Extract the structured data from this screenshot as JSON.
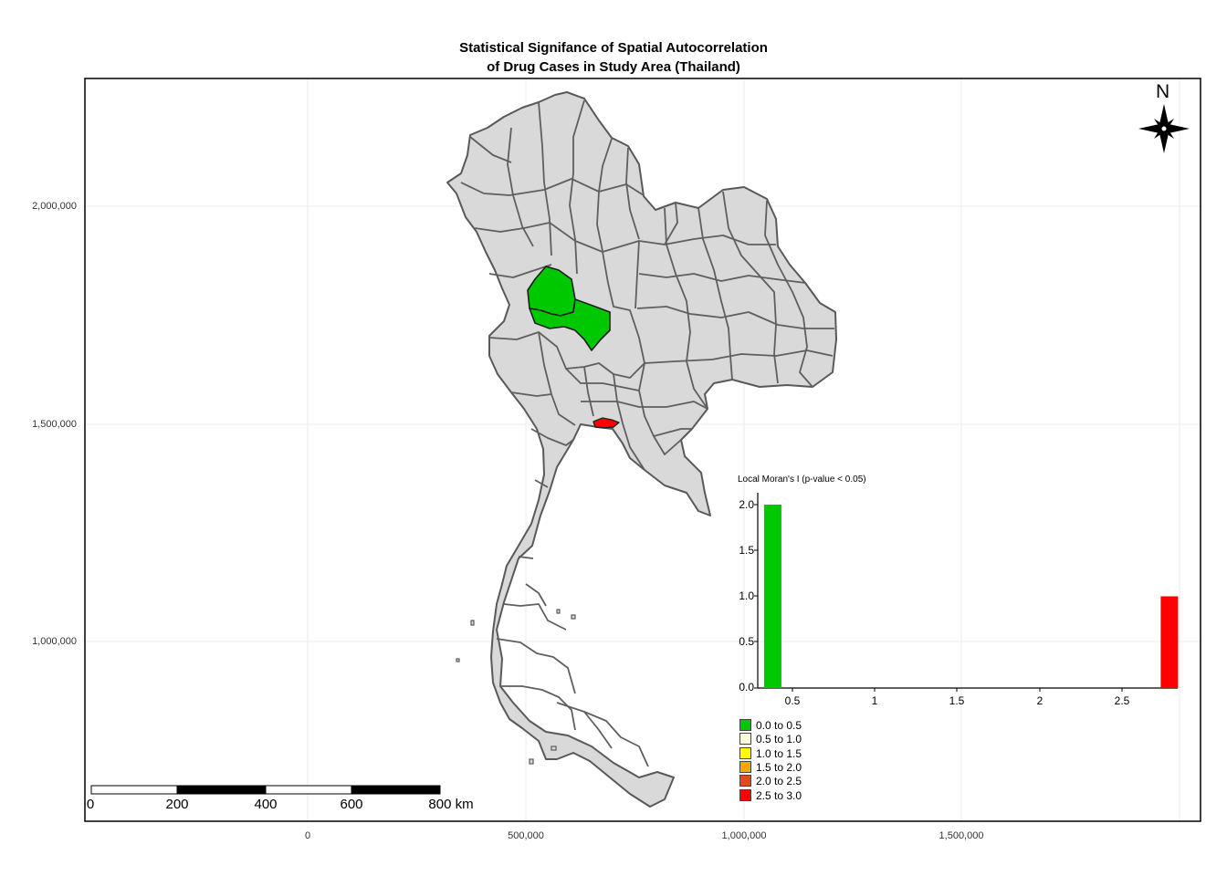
{
  "title": {
    "line1": "Statistical Signifance of Spatial Autocorrelation",
    "line2": "of Drug Cases in Study Area (Thailand)"
  },
  "axes": {
    "y_ticks": [
      "2,000,000",
      "1,500,000",
      "1,000,000"
    ],
    "x_ticks": [
      "0",
      "500,000",
      "1,000,000",
      "1,500,000"
    ]
  },
  "north_arrow": {
    "label": "N"
  },
  "scale_bar": {
    "labels": [
      "0",
      "200",
      "400",
      "600",
      "800 km"
    ]
  },
  "histogram": {
    "title": "Local Moran's I (p-value < 0.05)",
    "y_ticks": [
      "2.0",
      "1.5",
      "1.0",
      "0.5",
      "0.0"
    ],
    "x_ticks": [
      "0.5",
      "1",
      "1.5",
      "2",
      "2.5"
    ]
  },
  "legend": {
    "items": [
      {
        "label": "0.0 to 0.5",
        "color": "#00c800"
      },
      {
        "label": "0.5 to 1.0",
        "color": "#ffffe0"
      },
      {
        "label": "1.0 to 1.5",
        "color": "#ffff00"
      },
      {
        "label": "1.5 to 2.0",
        "color": "#ffa500"
      },
      {
        "label": "2.0 to 2.5",
        "color": "#e24a1e"
      },
      {
        "label": "2.5 to 3.0",
        "color": "#ff0000"
      }
    ]
  },
  "chart_data": {
    "type": "bar",
    "title": "Local Moran's I (p-value < 0.05)",
    "x": [
      0.37,
      2.75
    ],
    "values": [
      2,
      1
    ],
    "colors": [
      "#00c800",
      "#ff0000"
    ],
    "xlim": [
      0.28,
      2.8
    ],
    "ylim": [
      0,
      2.0
    ],
    "grid": false
  }
}
